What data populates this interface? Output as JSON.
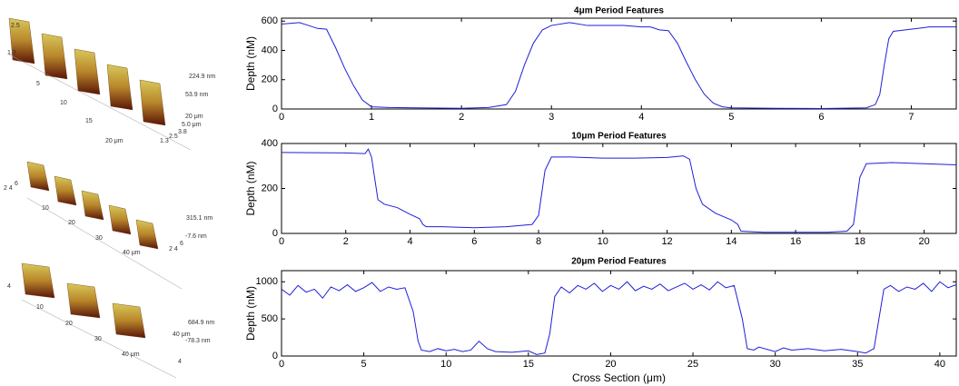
{
  "chart_data": [
    {
      "type": "line",
      "title": "4μm Period Features",
      "y_label": "Depth (nM)",
      "color": "#1f1fd9",
      "x": [
        0,
        0.2,
        0.3,
        0.4,
        0.5,
        0.6,
        0.7,
        0.8,
        0.9,
        1.0,
        1.2,
        1.5,
        2.0,
        2.3,
        2.5,
        2.6,
        2.7,
        2.8,
        2.9,
        3.0,
        3.2,
        3.4,
        3.8,
        4.0,
        4.1,
        4.2,
        4.3,
        4.4,
        4.5,
        4.6,
        4.7,
        4.8,
        4.9,
        5.0,
        5.5,
        6.0,
        6.5,
        6.6,
        6.65,
        6.7,
        6.75,
        6.8,
        7.0,
        7.2,
        7.5
      ],
      "values": [
        580,
        590,
        570,
        550,
        545,
        420,
        280,
        160,
        60,
        15,
        10,
        8,
        5,
        10,
        30,
        120,
        300,
        450,
        540,
        570,
        590,
        570,
        570,
        560,
        560,
        540,
        535,
        450,
        320,
        200,
        100,
        40,
        15,
        8,
        5,
        3,
        8,
        30,
        100,
        300,
        480,
        530,
        545,
        560,
        560
      ],
      "xlim": [
        0,
        7.5
      ],
      "xticks": [
        0,
        1,
        2,
        3,
        4,
        5,
        6,
        7
      ],
      "ylim": [
        0,
        620
      ],
      "yticks": [
        0,
        200,
        400,
        600
      ]
    },
    {
      "type": "line",
      "title": "10μm Period Features",
      "y_label": "Depth (nM)",
      "color": "#1f1fd9",
      "x": [
        0,
        2.0,
        2.6,
        2.7,
        2.8,
        3.0,
        3.2,
        3.6,
        4.0,
        4.3,
        4.4,
        4.5,
        5,
        6,
        7,
        7.8,
        8.0,
        8.2,
        8.4,
        9,
        10,
        11,
        12,
        12.5,
        12.7,
        12.9,
        13.1,
        13.5,
        14,
        14.2,
        14.3,
        15,
        16,
        17,
        17.6,
        17.8,
        18,
        18.2,
        19,
        20,
        21
      ],
      "values": [
        360,
        358,
        355,
        375,
        340,
        150,
        130,
        115,
        85,
        65,
        40,
        30,
        30,
        25,
        30,
        40,
        80,
        280,
        340,
        340,
        335,
        335,
        338,
        345,
        330,
        200,
        130,
        90,
        60,
        40,
        10,
        5,
        5,
        5,
        10,
        40,
        250,
        310,
        315,
        310,
        305
      ],
      "xlim": [
        0,
        21
      ],
      "xticks": [
        0,
        2,
        4,
        6,
        8,
        10,
        12,
        14,
        16,
        18,
        20
      ],
      "ylim": [
        0,
        400
      ],
      "yticks": [
        0,
        200,
        400
      ]
    },
    {
      "type": "line",
      "title": "20μm Period Features",
      "y_label": "Depth (nM)",
      "x_label": "Cross Section (μm)",
      "color": "#1f1fd9",
      "x": [
        0,
        0.5,
        1,
        1.5,
        2,
        2.5,
        3,
        3.5,
        4,
        4.5,
        5,
        5.5,
        6,
        6.5,
        7,
        7.5,
        8,
        8.3,
        8.5,
        9,
        9.5,
        10,
        10.5,
        11,
        11.5,
        12,
        12.5,
        13,
        14,
        15,
        15.5,
        16,
        16.3,
        16.6,
        17,
        17.5,
        18,
        18.5,
        19,
        19.5,
        20,
        20.5,
        21,
        21.5,
        22,
        22.5,
        23,
        23.5,
        24,
        24.5,
        25,
        25.5,
        26,
        26.5,
        27,
        27.5,
        28,
        28.3,
        28.7,
        29,
        30,
        30.5,
        31,
        32,
        33,
        34,
        35,
        35.5,
        36,
        36.3,
        36.6,
        37,
        37.5,
        38,
        38.5,
        39,
        39.5,
        40,
        40.5,
        41
      ],
      "values": [
        900,
        820,
        950,
        860,
        900,
        780,
        930,
        880,
        960,
        870,
        920,
        990,
        870,
        930,
        900,
        920,
        600,
        200,
        80,
        60,
        100,
        70,
        90,
        60,
        80,
        200,
        100,
        60,
        50,
        70,
        20,
        40,
        300,
        800,
        930,
        850,
        950,
        900,
        980,
        870,
        950,
        900,
        1000,
        880,
        940,
        900,
        970,
        880,
        930,
        980,
        900,
        960,
        890,
        1000,
        920,
        950,
        500,
        100,
        80,
        120,
        60,
        110,
        80,
        100,
        70,
        90,
        60,
        40,
        100,
        500,
        900,
        950,
        870,
        930,
        900,
        980,
        870,
        1000,
        920,
        960
      ],
      "xlim": [
        0,
        41
      ],
      "xticks": [
        0,
        5,
        10,
        15,
        20,
        25,
        30,
        35,
        40
      ],
      "ylim": [
        0,
        1150
      ],
      "yticks": [
        0,
        500,
        1000
      ]
    }
  ],
  "renders": [
    {
      "labels": [
        "2.5",
        "1.3",
        "5",
        "10",
        "15",
        "20 μm",
        "224.9 nm",
        "53.9 nm",
        "20 μm",
        "5.0 μm",
        "3.8",
        "2.5",
        "1.3"
      ]
    },
    {
      "labels": [
        "6",
        "2 4",
        "10",
        "20",
        "30",
        "40 μm",
        "315.1 nm",
        "-7.6 nm",
        "6",
        "2 4"
      ]
    },
    {
      "labels": [
        "4",
        "10",
        "20",
        "30",
        "40 μm",
        "684.9 nm",
        "-78.3 nm",
        "40 μm",
        "4"
      ]
    }
  ]
}
